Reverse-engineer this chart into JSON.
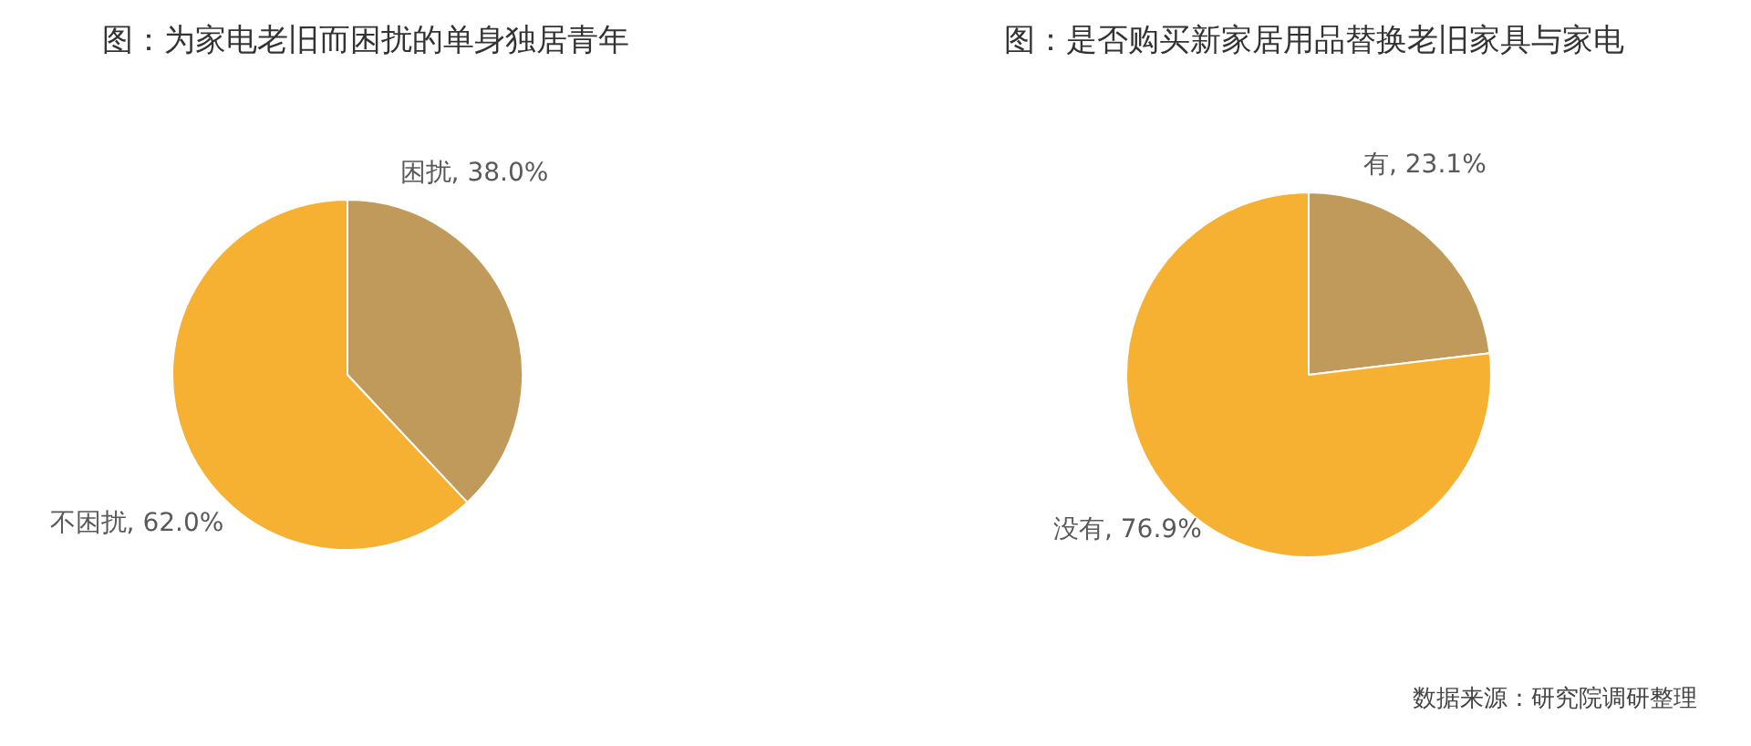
{
  "chart_data": [
    {
      "type": "pie",
      "title": "图：为家电老旧而困扰的单身独居青年",
      "categories": [
        "困扰",
        "不困扰"
      ],
      "values": [
        38.0,
        62.0
      ],
      "colors": [
        "#c09a5b",
        "#f6b132"
      ],
      "value_labels": [
        "38.0%",
        "62.0%"
      ]
    },
    {
      "type": "pie",
      "title": "图：是否购买新家居用品替换老旧家具与家电",
      "categories": [
        "有",
        "没有"
      ],
      "values": [
        23.1,
        76.9
      ],
      "colors": [
        "#c09a5b",
        "#f6b132"
      ],
      "value_labels": [
        "23.1%",
        "76.9%"
      ],
      "annotations": [
        "数据来源：研究院调研整理"
      ]
    }
  ]
}
